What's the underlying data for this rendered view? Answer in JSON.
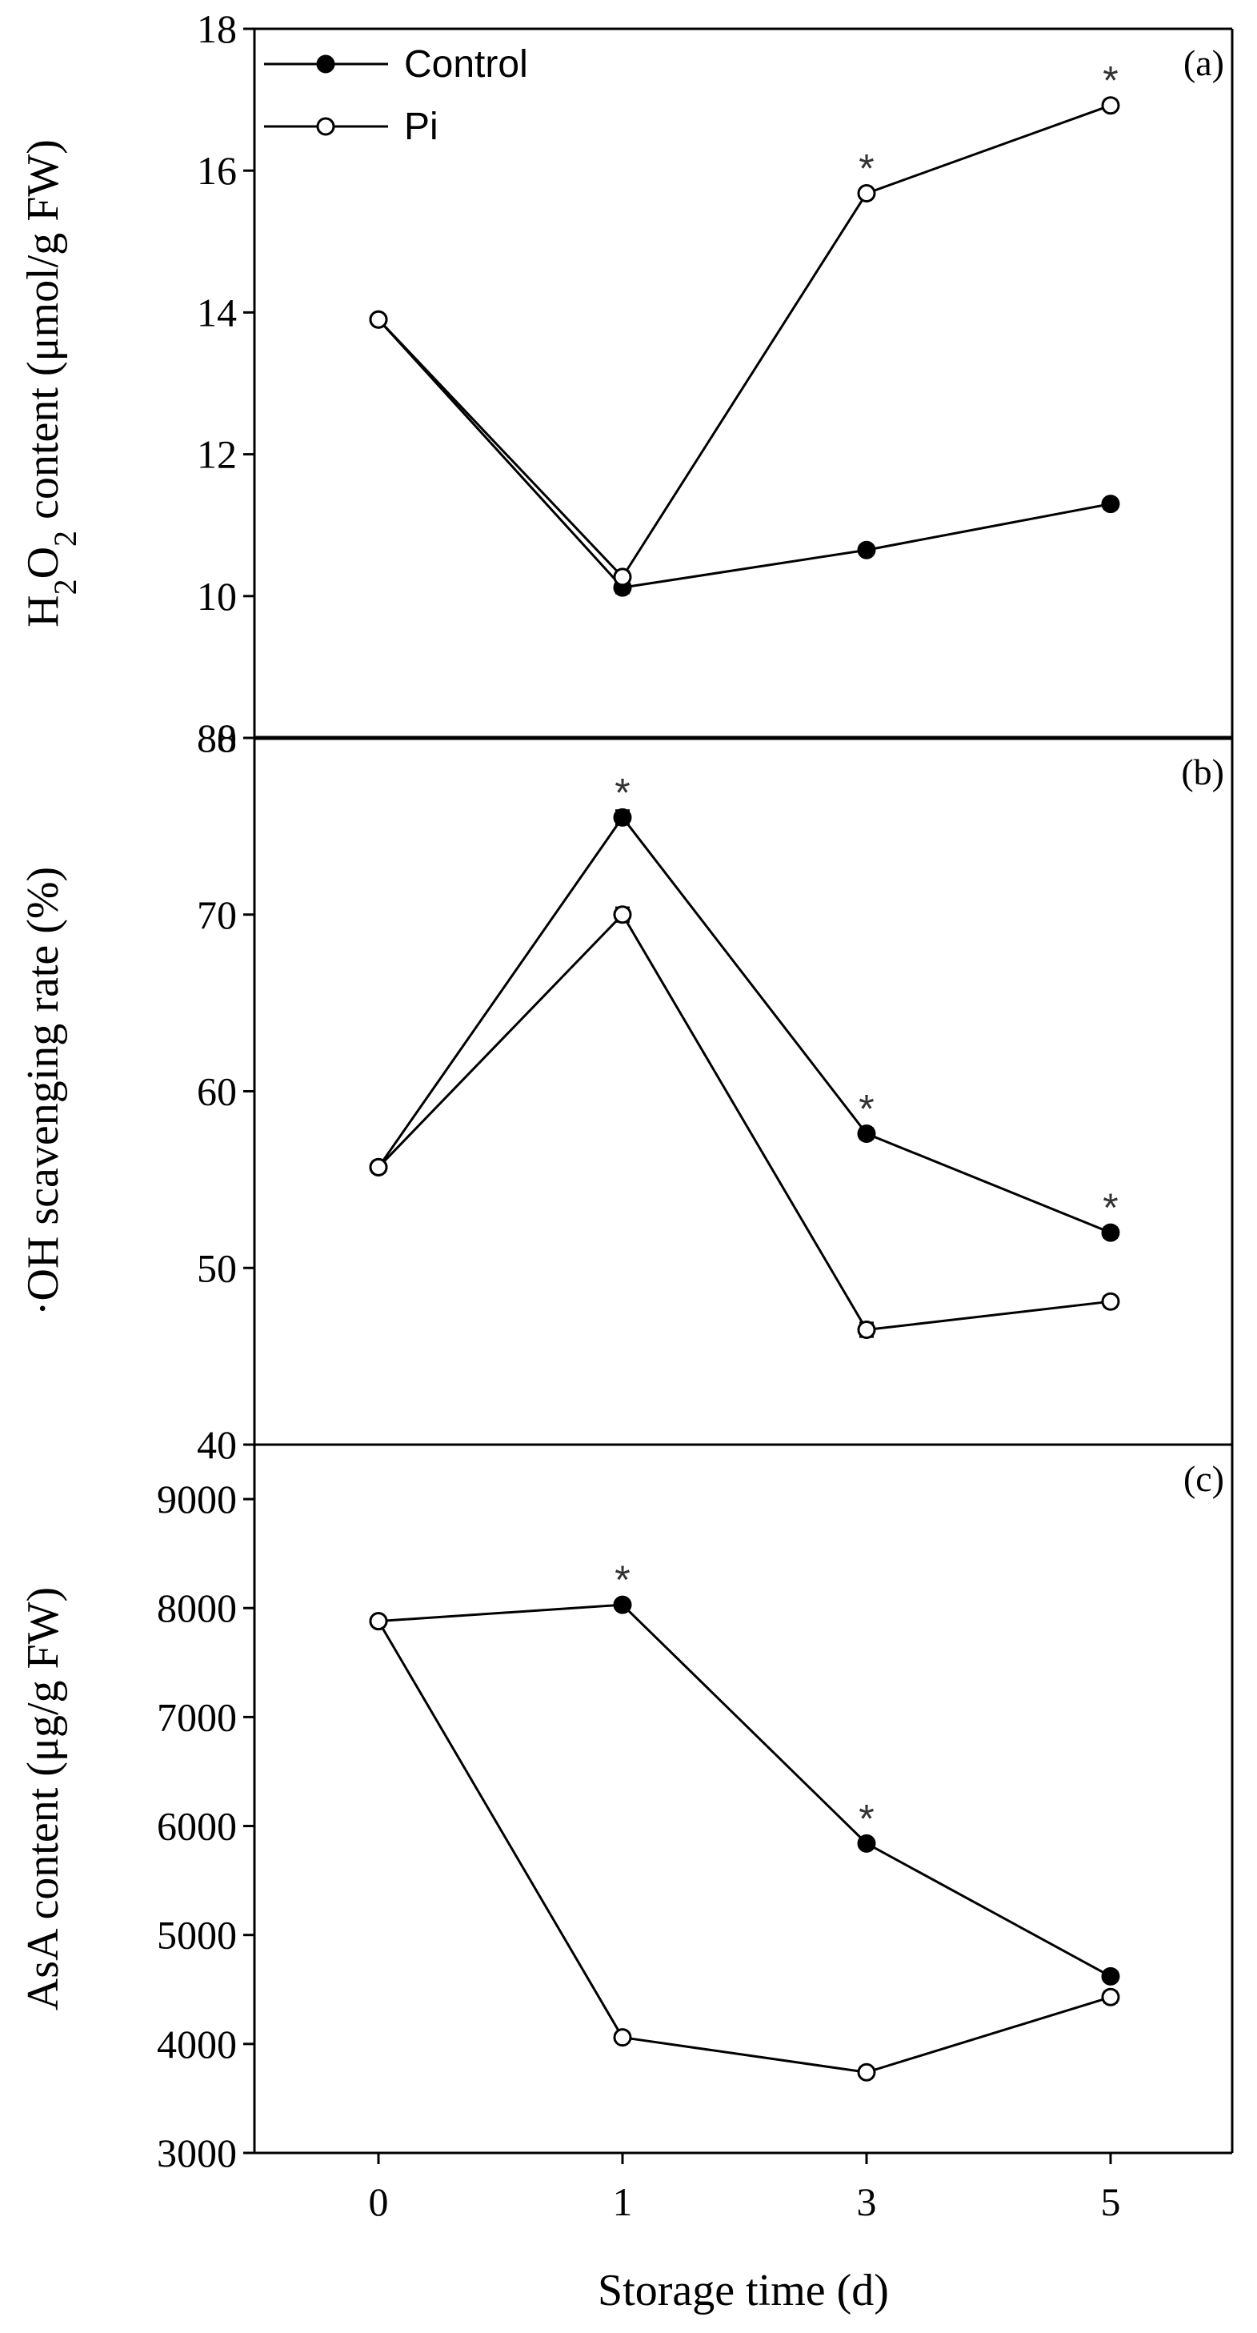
{
  "chart_data": [
    {
      "type": "line",
      "panel_label": "(a)",
      "ylabel_parts": [
        "H",
        "2",
        "O",
        "2",
        " content (μmol/g FW)"
      ],
      "ylim": [
        8,
        18
      ],
      "yticks": [
        8,
        10,
        12,
        14,
        16,
        18
      ],
      "x": [
        0,
        1,
        3,
        5
      ],
      "series": [
        {
          "name": "Control",
          "marker": "filled",
          "values": [
            13.9,
            10.12,
            10.65,
            11.3
          ],
          "err": [
            0.05,
            0.08,
            0.05,
            0.07
          ]
        },
        {
          "name": "Pi",
          "marker": "open",
          "values": [
            13.9,
            10.27,
            15.68,
            16.92
          ],
          "err": [
            0.05,
            0.08,
            0.07,
            0.07
          ]
        }
      ],
      "significance": [
        {
          "x": 3,
          "y": 15.68,
          "label": "*"
        },
        {
          "x": 5,
          "y": 16.92,
          "label": "*"
        }
      ],
      "legend": {
        "placement": "top-left"
      }
    },
    {
      "type": "line",
      "panel_label": "(b)",
      "ylabel": "·OH scavenging rate (%)",
      "ylim": [
        40,
        80
      ],
      "yticks": [
        40,
        50,
        60,
        70,
        80
      ],
      "x": [
        0,
        1,
        3,
        5
      ],
      "series": [
        {
          "name": "Control",
          "marker": "filled",
          "values": [
            55.7,
            75.5,
            57.6,
            52.0
          ],
          "err": [
            0.3,
            0.4,
            0.3,
            0.3
          ]
        },
        {
          "name": "Pi",
          "marker": "open",
          "values": [
            55.7,
            70.0,
            46.5,
            48.1
          ],
          "err": [
            0.3,
            0.4,
            0.4,
            0.3
          ]
        }
      ],
      "significance": [
        {
          "x": 1,
          "y": 75.5,
          "label": "*"
        },
        {
          "x": 3,
          "y": 57.6,
          "label": "*"
        },
        {
          "x": 5,
          "y": 52.0,
          "label": "*"
        }
      ]
    },
    {
      "type": "line",
      "panel_label": "(c)",
      "ylabel": "AsA content (μg/g FW)",
      "ylim": [
        3000,
        9500
      ],
      "yticks": [
        3000,
        4000,
        5000,
        6000,
        7000,
        8000,
        9000
      ],
      "x": [
        0,
        1,
        3,
        5
      ],
      "xticks": [
        "0",
        "1",
        "3",
        "5"
      ],
      "xlabel": "Storage time (d)",
      "series": [
        {
          "name": "Control",
          "marker": "filled",
          "values": [
            7880,
            8030,
            5840,
            4620
          ],
          "err": [
            30,
            40,
            40,
            40
          ]
        },
        {
          "name": "Pi",
          "marker": "open",
          "values": [
            7880,
            4060,
            3740,
            4430
          ],
          "err": [
            30,
            40,
            30,
            50
          ]
        }
      ],
      "significance": [
        {
          "x": 1,
          "y": 8030,
          "label": "*"
        },
        {
          "x": 3,
          "y": 5840,
          "label": "*"
        }
      ]
    }
  ]
}
